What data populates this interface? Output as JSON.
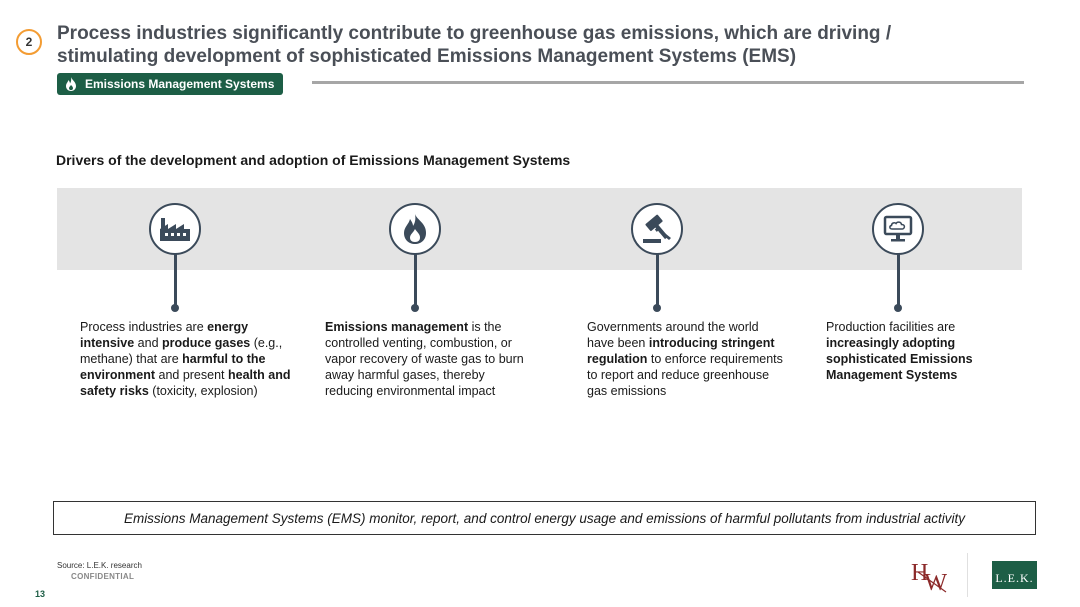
{
  "header": {
    "step_number": "2",
    "title_line1": "Process industries significantly contribute to greenhouse gas emissions, which are driving /",
    "title_line2": "stimulating development of sophisticated Emissions Management Systems (EMS)",
    "tag_label": "Emissions Management Systems",
    "tag_icon": "flame-icon"
  },
  "section": {
    "heading": "Drivers of the development and adoption of Emissions Management Systems"
  },
  "drivers": [
    {
      "icon": "factory-icon",
      "parts": [
        {
          "t": "Process industries are "
        },
        {
          "t": "energy intensive",
          "b": true
        },
        {
          "t": " and "
        },
        {
          "t": "produce gases",
          "b": true
        },
        {
          "t": " (e.g., methane) that are "
        },
        {
          "t": "harmful to the environment",
          "b": true
        },
        {
          "t": " and present "
        },
        {
          "t": "health and safety risks",
          "b": true
        },
        {
          "t": " (toxicity, explosion)"
        }
      ]
    },
    {
      "icon": "fire-icon",
      "parts": [
        {
          "t": "Emissions management",
          "b": true
        },
        {
          "t": " is the controlled venting, combustion, or vapor recovery of waste gas to burn away harmful gases, thereby reducing environmental impact"
        }
      ]
    },
    {
      "icon": "gavel-icon",
      "parts": [
        {
          "t": "Governments around the world have been "
        },
        {
          "t": "introducing stringent regulation",
          "b": true
        },
        {
          "t": " to enforce requirements to report and reduce greenhouse gas emissions"
        }
      ]
    },
    {
      "icon": "cloud-monitor-icon",
      "parts": [
        {
          "t": "Production facilities are "
        },
        {
          "t": "increasingly adopting sophisticated Emissions Management Systems",
          "b": true
        }
      ]
    }
  ],
  "summary": "Emissions Management Systems (EMS) monitor, report, and control energy usage and emissions of harmful pollutants from industrial activity",
  "footer": {
    "source": "Source: L.E.K. research",
    "confidential": "CONFIDENTIAL",
    "page_number": "13",
    "logo_hw_letters": "HW",
    "logo_lek_text": "L.E.K."
  },
  "colors": {
    "accent_green": "#1d5e46",
    "badge_orange": "#f39c33",
    "icon_navy": "#3b4a5a"
  }
}
